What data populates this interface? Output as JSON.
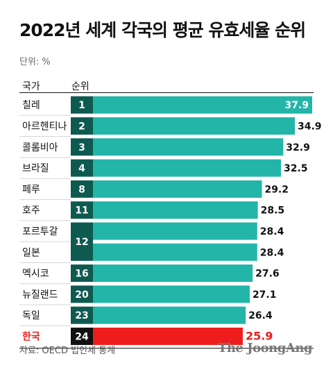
{
  "title": "2022년 세계 각국의 평균 유효세율 순위",
  "unit_label": "단위: %",
  "header": {
    "country": "국가",
    "rank": "순위"
  },
  "footer": {
    "source": "자료: OECD 법인세 통계",
    "logo": "The JoongAng"
  },
  "colors": {
    "bar": "#22b5a8",
    "highlight": "#ee1c1c",
    "rank_cell": "#0f5a50",
    "rank_cell_highlight": "#111111"
  },
  "chart_data": {
    "type": "bar",
    "orientation": "horizontal",
    "title": "2022년 세계 각국의 평균 유효세율 순위",
    "unit": "%",
    "categories": [
      "칠레",
      "아르헨티나",
      "콜롬비아",
      "브라질",
      "페루",
      "호주",
      "포르투갈",
      "일본",
      "멕시코",
      "뉴질랜드",
      "독일",
      "한국"
    ],
    "ranks": [
      "1",
      "2",
      "3",
      "4",
      "8",
      "11",
      "12",
      "12",
      "16",
      "20",
      "23",
      "24"
    ],
    "values": [
      37.9,
      34.9,
      32.9,
      32.5,
      29.2,
      28.5,
      28.4,
      28.4,
      27.6,
      27.1,
      26.4,
      25.9
    ],
    "value_labels": [
      "37.9",
      "34.9",
      "32.9",
      "32.5",
      "29.2",
      "28.5",
      "28.4",
      "28.4",
      "27.6",
      "27.1",
      "26.4",
      "25.9"
    ],
    "highlight": "한국",
    "xlim": [
      0,
      37.9
    ]
  }
}
